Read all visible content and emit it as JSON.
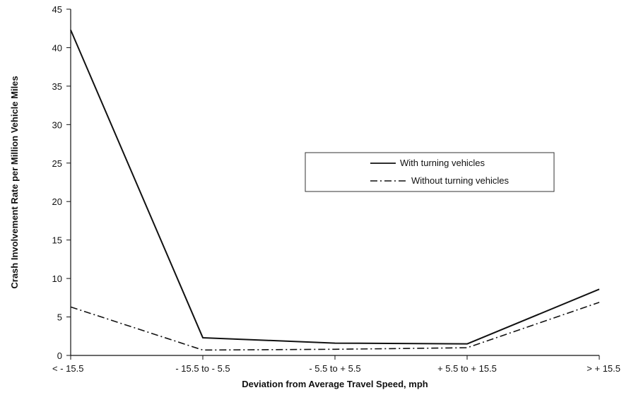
{
  "chart_data": {
    "type": "line",
    "title": "",
    "xlabel": "Deviation from Average Travel Speed, mph",
    "ylabel": "Crash Involvement Rate per Million Vehicle Miles",
    "categories": [
      "< - 15.5",
      "- 15.5 to - 5.5",
      "- 5.5 to + 5.5",
      "+ 5.5 to + 15.5",
      "> + 15.5"
    ],
    "ylim": [
      0,
      45
    ],
    "yticks": [
      0,
      5,
      10,
      15,
      20,
      25,
      30,
      35,
      40,
      45
    ],
    "grid": false,
    "legend_position": "right",
    "series": [
      {
        "name": "With turning vehicles",
        "values": [
          42.3,
          2.3,
          1.6,
          1.5,
          8.6
        ],
        "style": "solid",
        "color": "#111111"
      },
      {
        "name": "Without turning vehicles",
        "values": [
          6.3,
          0.7,
          0.8,
          1.0,
          6.9
        ],
        "style": "dash-dot",
        "color": "#111111"
      }
    ]
  }
}
